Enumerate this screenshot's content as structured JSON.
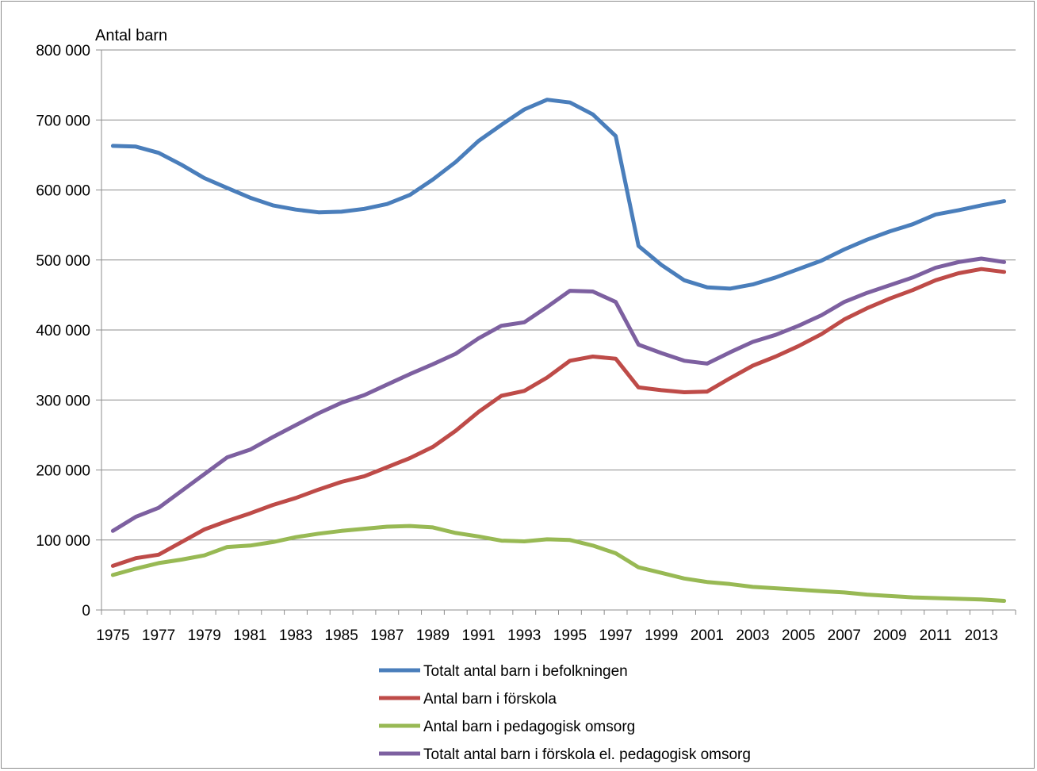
{
  "chart_data": {
    "type": "line",
    "title": "",
    "ylabel": "Antal barn",
    "xlabel": "",
    "ylim": [
      0,
      800000
    ],
    "yticks": [
      0,
      100000,
      200000,
      300000,
      400000,
      500000,
      600000,
      700000,
      800000
    ],
    "ytick_labels": [
      "0",
      "100 000",
      "200 000",
      "300 000",
      "400 000",
      "500 000",
      "600 000",
      "700 000",
      "800 000"
    ],
    "x": [
      1975,
      1976,
      1977,
      1978,
      1979,
      1980,
      1981,
      1982,
      1983,
      1984,
      1985,
      1986,
      1987,
      1988,
      1989,
      1990,
      1991,
      1992,
      1993,
      1994,
      1995,
      1996,
      1997,
      1998,
      1999,
      2000,
      2001,
      2002,
      2003,
      2004,
      2005,
      2006,
      2007,
      2008,
      2009,
      2010,
      2011,
      2012,
      2013,
      2014
    ],
    "xtick_labels": [
      "1975",
      "1977",
      "1979",
      "1981",
      "1983",
      "1985",
      "1987",
      "1989",
      "1991",
      "1993",
      "1995",
      "1997",
      "1999",
      "2001",
      "2003",
      "2005",
      "2007",
      "2009",
      "2011",
      "2013"
    ],
    "grid": "horizontal",
    "legend_position": "bottom",
    "series": [
      {
        "name": "Totalt antal barn i befolkningen",
        "color": "#4a7ebb",
        "values": [
          663000,
          662000,
          653000,
          636000,
          617000,
          603000,
          589000,
          578000,
          572000,
          568000,
          569000,
          573000,
          580000,
          593000,
          615000,
          640000,
          670000,
          693000,
          715000,
          729000,
          725000,
          708000,
          677000,
          520000,
          493000,
          471000,
          461000,
          459000,
          465000,
          475000,
          487000,
          499000,
          515000,
          529000,
          541000,
          551000,
          565000,
          571000,
          578000,
          584000
        ]
      },
      {
        "name": "Antal barn i förskola",
        "color": "#be4b48",
        "values": [
          63000,
          74000,
          79000,
          97000,
          115000,
          127000,
          138000,
          150000,
          160000,
          172000,
          183000,
          191000,
          204000,
          217000,
          233000,
          256000,
          283000,
          306000,
          313000,
          332000,
          356000,
          362000,
          359000,
          318000,
          314000,
          311000,
          312000,
          331000,
          349000,
          362000,
          377000,
          394000,
          415000,
          431000,
          445000,
          457000,
          471000,
          481000,
          487000,
          483000
        ]
      },
      {
        "name": "Antal barn i pedagogisk omsorg",
        "color": "#98b954",
        "values": [
          50000,
          59000,
          67000,
          72000,
          78000,
          90000,
          92000,
          97000,
          104000,
          109000,
          113000,
          116000,
          119000,
          120000,
          118000,
          110000,
          105000,
          99000,
          98000,
          101000,
          100000,
          92000,
          81000,
          61000,
          53000,
          45000,
          40000,
          37000,
          33000,
          31000,
          29000,
          27000,
          25000,
          22000,
          20000,
          18000,
          17000,
          16000,
          15000,
          13000
        ]
      },
      {
        "name": "Totalt antal barn i förskola el. pedagogisk omsorg",
        "color": "#7d60a0",
        "values": [
          113000,
          133000,
          146000,
          170000,
          194000,
          218000,
          229000,
          247000,
          264000,
          281000,
          296000,
          307000,
          322000,
          337000,
          351000,
          366000,
          388000,
          406000,
          411000,
          433000,
          456000,
          455000,
          440000,
          379000,
          367000,
          356000,
          352000,
          368000,
          383000,
          393000,
          406000,
          421000,
          440000,
          453000,
          464000,
          475000,
          489000,
          497000,
          502000,
          497000
        ]
      }
    ]
  }
}
